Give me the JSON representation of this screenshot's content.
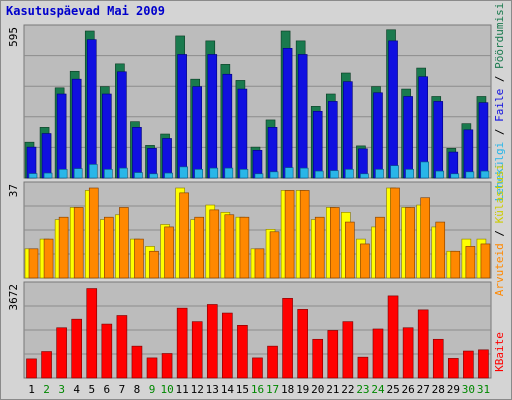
{
  "title": "Kasutuspäevad Mai 2009",
  "chart_data": [
    {
      "type": "bar",
      "title": "Kasutuspäevad Mai 2009",
      "categories": [
        "1",
        "2",
        "3",
        "4",
        "5",
        "6",
        "7",
        "8",
        "9",
        "10",
        "11",
        "12",
        "13",
        "14",
        "15",
        "16",
        "17",
        "18",
        "19",
        "20",
        "21",
        "22",
        "23",
        "24",
        "25",
        "26",
        "27",
        "28",
        "29",
        "30",
        "31"
      ],
      "weekend_days": [
        2,
        3,
        9,
        10,
        16,
        17,
        23,
        24,
        30,
        31
      ],
      "ymax_label": "595",
      "ymax": 595,
      "right_label": "Pöördumisi / Faile / Lehekülgi",
      "series": [
        {
          "name": "Pöördumisi",
          "color": "#1a7a4e",
          "values": [
            145,
            205,
            365,
            432,
            595,
            370,
            462,
            228,
            132,
            178,
            575,
            400,
            555,
            460,
            395,
            125,
            235,
            595,
            555,
            290,
            340,
            425,
            130,
            370,
            600,
            360,
            445,
            330,
            120,
            220,
            330
          ]
        },
        {
          "name": "Faile",
          "color": "#1010e0",
          "values": [
            125,
            180,
            340,
            400,
            560,
            340,
            430,
            205,
            120,
            160,
            500,
            370,
            500,
            420,
            360,
            112,
            205,
            525,
            500,
            270,
            310,
            390,
            118,
            345,
            555,
            330,
            410,
            310,
            105,
            195,
            305
          ]
        },
        {
          "name": "Lehekülgi",
          "color": "#29b6e8",
          "values": [
            18,
            20,
            35,
            38,
            55,
            35,
            40,
            22,
            17,
            20,
            45,
            35,
            40,
            40,
            35,
            17,
            25,
            42,
            40,
            28,
            30,
            35,
            17,
            35,
            50,
            35,
            65,
            28,
            17,
            25,
            28
          ]
        }
      ]
    },
    {
      "type": "bar",
      "ymax_label": "37",
      "ymax": 37,
      "right_label": "Arvuteid / Külastusi",
      "series": [
        {
          "name": "Külastusi",
          "color": "#ffff00",
          "values": [
            12,
            16,
            24,
            29,
            36,
            24,
            26,
            16,
            13,
            22,
            37,
            24,
            30,
            27,
            25,
            12,
            20,
            36,
            36,
            24,
            29,
            27,
            16,
            21,
            37,
            29,
            30,
            21,
            11,
            16,
            16
          ]
        },
        {
          "name": "Arvuteid",
          "color": "#ff8800",
          "values": [
            12,
            16,
            25,
            29,
            37,
            25,
            29,
            16,
            11,
            21,
            35,
            25,
            28,
            26,
            25,
            12,
            19,
            36,
            36,
            25,
            29,
            23,
            14,
            25,
            37,
            29,
            33,
            23,
            11,
            13,
            14
          ]
        }
      ]
    },
    {
      "type": "bar",
      "ymax_label": "3672",
      "ymax": 3672,
      "right_label": "KBaite",
      "series": [
        {
          "name": "KBaite",
          "color": "#ff0000",
          "values": [
            780,
            1080,
            2050,
            2400,
            3650,
            2200,
            2550,
            1300,
            820,
            1000,
            2850,
            2300,
            3000,
            2650,
            2150,
            820,
            1300,
            3250,
            2800,
            1580,
            1940,
            2300,
            850,
            2000,
            3350,
            2050,
            2780,
            1580,
            800,
            1100,
            1150
          ]
        }
      ]
    }
  ],
  "colors": {
    "weekday_label": "#000000",
    "weekend_label": "#008800",
    "bg": "#d4d4d4",
    "plot_bg": "#bcbcbc"
  }
}
